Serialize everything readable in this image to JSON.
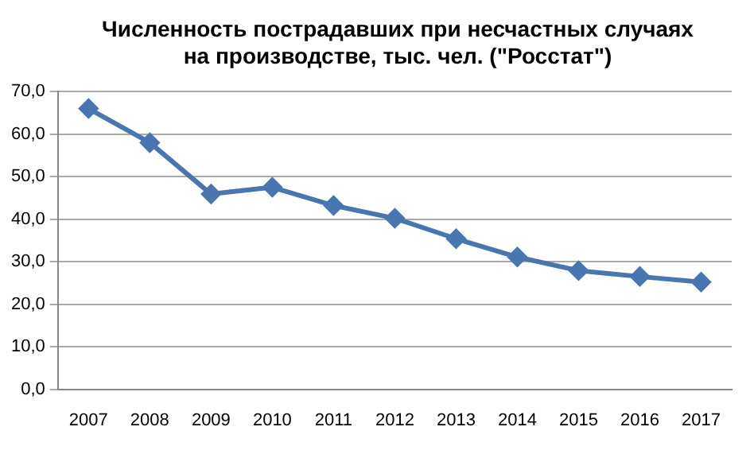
{
  "chart_data": {
    "type": "line",
    "title": "Численность пострадавших при несчастных случаях на производстве, тыс. чел. (\"Росстат\")",
    "categories": [
      "2007",
      "2008",
      "2009",
      "2010",
      "2011",
      "2012",
      "2013",
      "2014",
      "2015",
      "2016",
      "2017"
    ],
    "series": [
      {
        "color": "#4a76b0",
        "values": [
          66.0,
          58.0,
          45.9,
          47.5,
          43.2,
          40.2,
          35.4,
          31.1,
          27.9,
          26.5,
          25.2
        ]
      }
    ],
    "ylim": [
      0,
      70
    ],
    "yticks": [
      {
        "value": 0,
        "label": "0,0"
      },
      {
        "value": 10,
        "label": "10,0"
      },
      {
        "value": 20,
        "label": "20,0"
      },
      {
        "value": 30,
        "label": "30,0"
      },
      {
        "value": 40,
        "label": "40,0"
      },
      {
        "value": 50,
        "label": "50,0"
      },
      {
        "value": 60,
        "label": "60,0"
      },
      {
        "value": 70,
        "label": "70,0"
      }
    ],
    "grid": "y",
    "legend": false,
    "marker": "diamond",
    "line_style": "solid"
  }
}
